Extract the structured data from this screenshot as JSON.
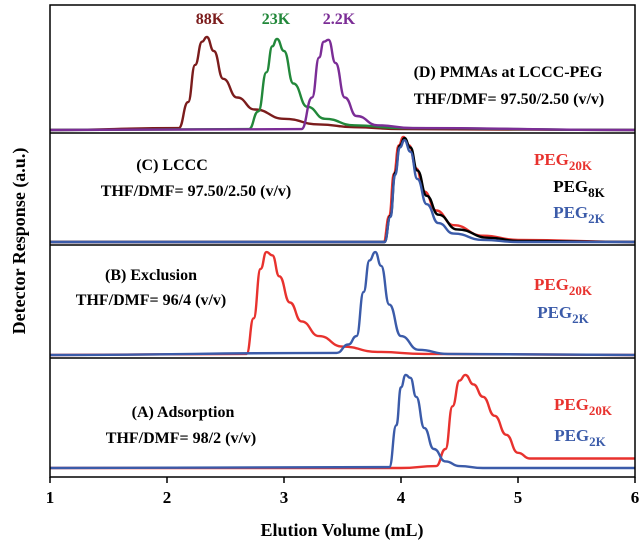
{
  "chart_data": {
    "type": "line",
    "xlabel": "Elution Volume (mL)",
    "ylabel": "Detector Response (a.u.)",
    "xlim": [
      1,
      6
    ],
    "x_ticks": [
      "1",
      "2",
      "3",
      "4",
      "5",
      "6"
    ],
    "panels": [
      {
        "id": "D",
        "title": "(D) PMMAs at LCCC-PEG",
        "subtitle": "THF/DMF= 97.50/2.50 (v/v)",
        "peak_labels": [
          {
            "text": "88K",
            "color": "#7b1c1c"
          },
          {
            "text": "23K",
            "color": "#22883a"
          },
          {
            "text": "2.2K",
            "color": "#7b2d96"
          }
        ],
        "series": [
          {
            "name": "88K",
            "color": "#7b1c1c",
            "x": [
              1.0,
              2.1,
              2.18,
              2.24,
              2.3,
              2.34,
              2.4,
              2.48,
              2.6,
              2.75,
              3.0,
              3.3,
              3.6,
              4.0,
              6.0
            ],
            "y": [
              0.0,
              0.02,
              0.3,
              0.7,
              0.95,
              1.0,
              0.85,
              0.55,
              0.35,
              0.22,
              0.12,
              0.06,
              0.03,
              0.01,
              0.0
            ]
          },
          {
            "name": "23K",
            "color": "#22883a",
            "x": [
              1.0,
              2.7,
              2.78,
              2.85,
              2.9,
              2.94,
              3.0,
              3.08,
              3.2,
              3.35,
              3.6,
              4.0,
              6.0
            ],
            "y": [
              0.0,
              0.01,
              0.2,
              0.62,
              0.9,
              0.98,
              0.85,
              0.5,
              0.25,
              0.12,
              0.05,
              0.02,
              0.0
            ]
          },
          {
            "name": "2.2K",
            "color": "#7b2d96",
            "x": [
              1.0,
              3.15,
              3.24,
              3.3,
              3.34,
              3.38,
              3.44,
              3.52,
              3.62,
              3.8,
              4.1,
              6.0
            ],
            "y": [
              0.0,
              0.01,
              0.35,
              0.78,
              0.95,
              0.97,
              0.72,
              0.35,
              0.15,
              0.05,
              0.02,
              0.0
            ]
          }
        ]
      },
      {
        "id": "C",
        "title": "(C) LCCC",
        "subtitle": "THF/DMF= 97.50/2.50 (v/v)",
        "legend": [
          {
            "base": "PEG",
            "sub": "20K",
            "color": "#e8322e"
          },
          {
            "base": "PEG",
            "sub": "8K",
            "color": "#000000"
          },
          {
            "base": "PEG",
            "sub": "2K",
            "color": "#3b5ba9"
          }
        ],
        "series": [
          {
            "name": "PEG20K",
            "color": "#e8322e",
            "x": [
              1.0,
              3.85,
              3.9,
              3.94,
              3.98,
              4.02,
              4.07,
              4.13,
              4.2,
              4.3,
              4.45,
              4.7,
              5.0,
              6.0
            ],
            "y": [
              0.0,
              0.0,
              0.25,
              0.65,
              0.92,
              1.0,
              0.92,
              0.7,
              0.48,
              0.3,
              0.16,
              0.06,
              0.02,
              0.0
            ]
          },
          {
            "name": "PEG8K",
            "color": "#000000",
            "x": [
              1.0,
              3.86,
              3.91,
              3.95,
              3.99,
              4.03,
              4.08,
              4.14,
              4.22,
              4.32,
              4.48,
              4.75,
              5.0,
              6.0
            ],
            "y": [
              0.0,
              0.0,
              0.25,
              0.66,
              0.92,
              0.99,
              0.9,
              0.68,
              0.44,
              0.26,
              0.12,
              0.04,
              0.01,
              0.0
            ]
          },
          {
            "name": "PEG2K",
            "color": "#3b5ba9",
            "x": [
              1.0,
              3.86,
              3.91,
              3.95,
              3.99,
              4.03,
              4.08,
              4.14,
              4.22,
              4.32,
              4.45,
              4.7,
              5.0,
              6.0
            ],
            "y": [
              0.0,
              0.0,
              0.24,
              0.64,
              0.9,
              0.97,
              0.86,
              0.6,
              0.36,
              0.18,
              0.08,
              0.02,
              0.0,
              0.0
            ]
          }
        ]
      },
      {
        "id": "B",
        "title": "(B) Exclusion",
        "subtitle": "THF/DMF= 96/4 (v/v)",
        "legend": [
          {
            "base": "PEG",
            "sub": "20K",
            "color": "#e8322e"
          },
          {
            "base": "PEG",
            "sub": "2K",
            "color": "#3b5ba9"
          }
        ],
        "series": [
          {
            "name": "PEG20K",
            "color": "#e8322e",
            "x": [
              1.0,
              2.68,
              2.74,
              2.8,
              2.85,
              2.9,
              2.96,
              3.05,
              3.15,
              3.3,
              3.5,
              3.8,
              4.2,
              6.0
            ],
            "y": [
              0.0,
              0.01,
              0.35,
              0.82,
              0.98,
              0.95,
              0.75,
              0.5,
              0.32,
              0.18,
              0.08,
              0.03,
              0.01,
              0.0
            ]
          },
          {
            "name": "PEG2K",
            "color": "#3b5ba9",
            "x": [
              1.0,
              3.45,
              3.55,
              3.62,
              3.68,
              3.73,
              3.78,
              3.83,
              3.9,
              4.0,
              4.15,
              4.4,
              6.0
            ],
            "y": [
              0.0,
              0.02,
              0.1,
              0.18,
              0.6,
              0.9,
              0.98,
              0.85,
              0.48,
              0.18,
              0.05,
              0.01,
              0.0
            ]
          }
        ]
      },
      {
        "id": "A",
        "title": "(A) Adsorption",
        "subtitle": "THF/DMF= 98/2 (v/v)",
        "legend": [
          {
            "base": "PEG",
            "sub": "20K",
            "color": "#e8322e"
          },
          {
            "base": "PEG",
            "sub": "2K",
            "color": "#3b5ba9"
          }
        ],
        "series": [
          {
            "name": "PEG20K",
            "color": "#e8322e",
            "x": [
              1.0,
              4.0,
              4.3,
              4.38,
              4.44,
              4.5,
              4.55,
              4.62,
              4.7,
              4.8,
              4.9,
              5.0,
              5.1,
              6.0
            ],
            "y": [
              0.0,
              0.0,
              0.02,
              0.2,
              0.65,
              0.92,
              0.98,
              0.88,
              0.75,
              0.55,
              0.35,
              0.16,
              0.1,
              0.1
            ]
          },
          {
            "name": "PEG2K",
            "color": "#3b5ba9",
            "x": [
              1.0,
              3.9,
              3.96,
              4.0,
              4.04,
              4.08,
              4.13,
              4.2,
              4.28,
              4.38,
              4.5,
              4.7,
              6.0
            ],
            "y": [
              0.0,
              0.01,
              0.45,
              0.85,
              0.98,
              0.95,
              0.75,
              0.42,
              0.2,
              0.07,
              0.02,
              0.0,
              0.0
            ]
          }
        ]
      }
    ]
  }
}
